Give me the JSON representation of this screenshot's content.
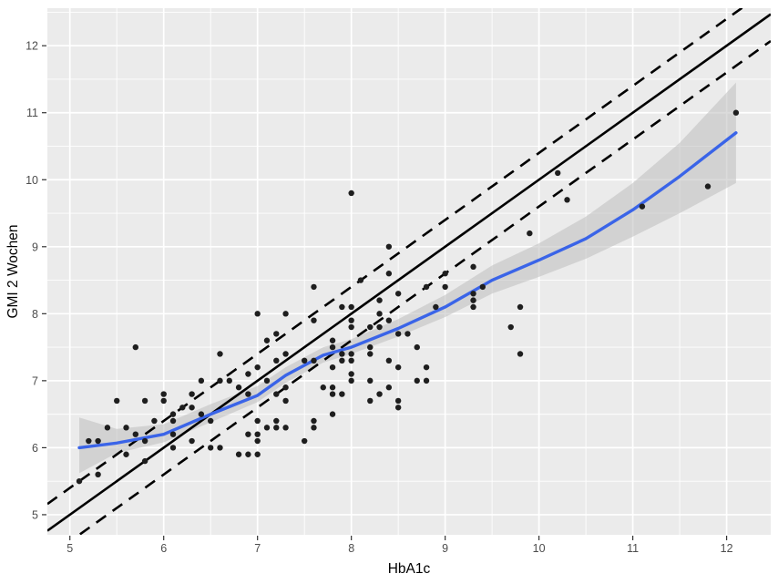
{
  "figure": {
    "x_axis_title": "HbA1c",
    "y_axis_title": "GMI 2 Wochen"
  },
  "chart_data": {
    "type": "scatter",
    "title": "",
    "xlabel": "HbA1c",
    "ylabel": "GMI 2 Wochen",
    "x_ticks": [
      5,
      6,
      7,
      8,
      9,
      10,
      11,
      12
    ],
    "y_ticks": [
      5,
      6,
      7,
      8,
      9,
      10,
      11,
      12
    ],
    "x_minor": [
      5.5,
      6.5,
      7.5,
      8.5,
      9.5,
      10.5,
      11.5
    ],
    "y_minor": [
      5.5,
      6.5,
      7.5,
      8.5,
      9.5,
      10.5,
      11.5,
      12.5
    ],
    "xlim": [
      4.76,
      12.47
    ],
    "ylim": [
      4.7,
      12.56
    ],
    "grid": true,
    "legend": false,
    "points": [
      [
        5.1,
        5.5
      ],
      [
        5.3,
        5.6
      ],
      [
        5.2,
        6.1
      ],
      [
        5.3,
        6.1
      ],
      [
        5.4,
        6.3
      ],
      [
        5.6,
        6.3
      ],
      [
        5.7,
        6.2
      ],
      [
        5.8,
        6.1
      ],
      [
        5.8,
        5.8
      ],
      [
        5.6,
        5.9
      ],
      [
        5.5,
        6.7
      ],
      [
        5.8,
        6.7
      ],
      [
        5.9,
        6.4
      ],
      [
        5.7,
        7.5
      ],
      [
        6.0,
        6.8
      ],
      [
        6.0,
        6.7
      ],
      [
        6.1,
        6.4
      ],
      [
        6.1,
        6.5
      ],
      [
        6.2,
        6.6
      ],
      [
        6.1,
        6.2
      ],
      [
        6.1,
        6.0
      ],
      [
        6.3,
        6.8
      ],
      [
        6.3,
        6.6
      ],
      [
        6.4,
        6.5
      ],
      [
        6.5,
        6.4
      ],
      [
        6.3,
        6.1
      ],
      [
        6.5,
        6.0
      ],
      [
        6.6,
        6.0
      ],
      [
        6.4,
        7.0
      ],
      [
        6.6,
        7.0
      ],
      [
        6.7,
        7.0
      ],
      [
        6.8,
        6.9
      ],
      [
        6.6,
        7.4
      ],
      [
        6.8,
        5.9
      ],
      [
        6.9,
        5.9
      ],
      [
        7.0,
        5.9
      ],
      [
        6.9,
        6.2
      ],
      [
        7.0,
        6.2
      ],
      [
        7.0,
        6.1
      ],
      [
        7.0,
        6.4
      ],
      [
        7.1,
        6.3
      ],
      [
        7.2,
        6.3
      ],
      [
        7.2,
        6.4
      ],
      [
        7.3,
        6.3
      ],
      [
        7.5,
        6.1
      ],
      [
        7.6,
        6.4
      ],
      [
        7.6,
        6.3
      ],
      [
        7.8,
        6.5
      ],
      [
        6.9,
        7.1
      ],
      [
        6.9,
        6.8
      ],
      [
        7.0,
        7.2
      ],
      [
        7.1,
        7.0
      ],
      [
        7.3,
        6.9
      ],
      [
        7.2,
        6.8
      ],
      [
        7.3,
        6.7
      ],
      [
        7.3,
        7.4
      ],
      [
        7.2,
        7.3
      ],
      [
        7.5,
        7.3
      ],
      [
        7.6,
        7.3
      ],
      [
        7.1,
        7.6
      ],
      [
        7.2,
        7.7
      ],
      [
        7.0,
        8.0
      ],
      [
        7.3,
        8.0
      ],
      [
        7.6,
        8.4
      ],
      [
        7.6,
        7.9
      ],
      [
        7.8,
        7.6
      ],
      [
        7.8,
        7.5
      ],
      [
        7.9,
        7.4
      ],
      [
        8.0,
        7.4
      ],
      [
        8.2,
        7.4
      ],
      [
        8.2,
        7.5
      ],
      [
        7.9,
        7.3
      ],
      [
        8.0,
        7.3
      ],
      [
        7.8,
        7.2
      ],
      [
        8.0,
        7.1
      ],
      [
        8.0,
        7.0
      ],
      [
        7.7,
        6.9
      ],
      [
        7.8,
        6.9
      ],
      [
        7.8,
        6.8
      ],
      [
        7.9,
        6.8
      ],
      [
        8.2,
        7.0
      ],
      [
        8.3,
        6.8
      ],
      [
        8.2,
        6.7
      ],
      [
        8.4,
        7.3
      ],
      [
        8.5,
        7.2
      ],
      [
        8.4,
        6.9
      ],
      [
        8.5,
        6.7
      ],
      [
        8.5,
        6.6
      ],
      [
        8.7,
        7.0
      ],
      [
        8.8,
        7.0
      ],
      [
        8.8,
        7.2
      ],
      [
        8.7,
        7.5
      ],
      [
        8.5,
        7.7
      ],
      [
        8.6,
        7.7
      ],
      [
        7.9,
        8.1
      ],
      [
        8.0,
        8.1
      ],
      [
        8.0,
        7.9
      ],
      [
        8.0,
        7.8
      ],
      [
        8.1,
        8.5
      ],
      [
        8.3,
        8.2
      ],
      [
        8.3,
        8.0
      ],
      [
        8.4,
        7.9
      ],
      [
        8.2,
        7.8
      ],
      [
        8.3,
        7.8
      ],
      [
        8.4,
        9.0
      ],
      [
        8.4,
        8.6
      ],
      [
        8.5,
        8.3
      ],
      [
        8.8,
        8.4
      ],
      [
        8.9,
        8.1
      ],
      [
        9.0,
        8.6
      ],
      [
        9.0,
        8.4
      ],
      [
        9.4,
        8.4
      ],
      [
        9.3,
        8.7
      ],
      [
        9.3,
        8.3
      ],
      [
        9.3,
        8.2
      ],
      [
        9.3,
        8.1
      ],
      [
        9.7,
        7.8
      ],
      [
        9.8,
        8.1
      ],
      [
        9.8,
        7.4
      ],
      [
        9.9,
        9.2
      ],
      [
        8.0,
        9.8
      ],
      [
        10.2,
        10.1
      ],
      [
        10.3,
        9.7
      ],
      [
        11.1,
        9.6
      ],
      [
        11.8,
        9.9
      ],
      [
        12.1,
        11.0
      ]
    ],
    "reference_lines": [
      {
        "name": "identity-line",
        "slope": 1,
        "intercept": 0,
        "style": "solid"
      },
      {
        "name": "upper-dashed-line",
        "slope": 1,
        "intercept": 0.4,
        "style": "dashed"
      },
      {
        "name": "lower-dashed-line",
        "slope": 1,
        "intercept": -0.4,
        "style": "dashed"
      }
    ],
    "smooth": {
      "method": "loess",
      "x": [
        5.1,
        5.5,
        6.0,
        6.5,
        7.0,
        7.3,
        7.7,
        8.0,
        8.5,
        9.0,
        9.5,
        10.0,
        10.5,
        11.0,
        11.5,
        12.1
      ],
      "y": [
        6.0,
        6.07,
        6.2,
        6.5,
        6.78,
        7.08,
        7.38,
        7.5,
        7.78,
        8.1,
        8.5,
        8.8,
        9.12,
        9.55,
        10.05,
        10.7
      ]
    },
    "ci_band": {
      "x": [
        5.1,
        5.5,
        6.0,
        6.5,
        7.0,
        7.3,
        7.7,
        8.0,
        8.5,
        9.0,
        9.5,
        10.0,
        10.5,
        11.0,
        11.5,
        12.1
      ],
      "low": [
        5.62,
        5.92,
        6.08,
        6.38,
        6.68,
        6.97,
        7.27,
        7.4,
        7.66,
        7.95,
        8.3,
        8.55,
        8.82,
        9.15,
        9.5,
        9.95
      ],
      "high": [
        6.45,
        6.28,
        6.35,
        6.65,
        6.92,
        7.2,
        7.5,
        7.62,
        7.92,
        8.28,
        8.72,
        9.05,
        9.45,
        9.95,
        10.55,
        11.45
      ]
    },
    "colors": {
      "panel": "#EBEBEB",
      "grid": "#FFFFFF",
      "point": "#1E1E1E",
      "smooth": "#3A64E8",
      "band": "#BDBDBD",
      "reference": "#000000",
      "tick_mark": "#333333",
      "tick_text": "#4D4D4D",
      "title_text": "#000000"
    }
  }
}
